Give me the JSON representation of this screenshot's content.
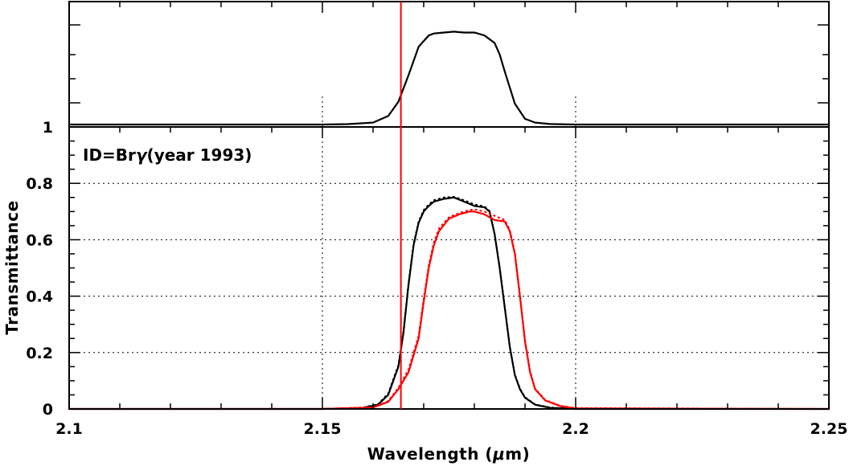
{
  "colors": {
    "black_curve": "#000000",
    "red_curve": "#ff0000",
    "marker_line": "#ff0000",
    "grid": "#000000",
    "background": "#ffffff"
  },
  "chart_data": [
    {
      "id": "top-panel",
      "type": "line",
      "title": "",
      "xlabel": "",
      "ylabel": "",
      "xlim": [
        2.1,
        2.25
      ],
      "yticks_labeled": [
        1
      ],
      "annotations": [],
      "series": [
        {
          "color": "#000000",
          "style": "solid",
          "x": [
            2.1,
            2.15,
            2.155,
            2.16,
            2.163,
            2.165,
            2.167,
            2.169,
            2.171,
            2.172,
            2.174,
            2.176,
            2.177,
            2.178,
            2.18,
            2.182,
            2.184,
            2.185,
            2.186,
            2.188,
            2.19,
            2.192,
            2.195,
            2.2,
            2.25
          ],
          "y": [
            0.0,
            0.0,
            0.004,
            0.02,
            0.09,
            0.24,
            0.52,
            0.82,
            0.94,
            0.96,
            0.97,
            0.98,
            0.975,
            0.97,
            0.97,
            0.94,
            0.86,
            0.74,
            0.56,
            0.22,
            0.06,
            0.02,
            0.005,
            0.0,
            0.0
          ]
        }
      ]
    },
    {
      "id": "bottom-panel",
      "type": "line",
      "title": "",
      "xlabel": "Wavelength (",
      "xlabel_symbol": "μ",
      "xlabel_suffix": "m)",
      "ylabel": "Transmittance",
      "xlim": [
        2.1,
        2.25
      ],
      "ylim": [
        0,
        1
      ],
      "xticks": [
        2.1,
        2.15,
        2.2,
        2.25
      ],
      "xtick_labels": [
        "2.1",
        "2.15",
        "2.2",
        "2.25"
      ],
      "yticks": [
        0,
        0.2,
        0.4,
        0.6,
        0.8,
        1
      ],
      "ytick_labels": [
        "0",
        "0.2",
        "0.4",
        "0.6",
        "0.8",
        "1"
      ],
      "grid": true,
      "grid_style": "dotted",
      "annotations": [
        {
          "prefix": "ID=Br",
          "symbol": "γ",
          "suffix": "(year 1993)"
        }
      ],
      "vertical_marker": {
        "x": 2.1655,
        "color": "#ff0000"
      },
      "series": [
        {
          "color": "#000000",
          "style": "solid",
          "x": [
            2.1,
            2.15,
            2.158,
            2.161,
            2.163,
            2.165,
            2.166,
            2.167,
            2.168,
            2.169,
            2.17,
            2.171,
            2.172,
            2.174,
            2.176,
            2.178,
            2.18,
            2.182,
            2.183,
            2.184,
            2.185,
            2.186,
            2.187,
            2.188,
            2.189,
            2.19,
            2.192,
            2.195,
            2.2,
            2.25
          ],
          "y": [
            0.0,
            0.0,
            0.004,
            0.015,
            0.05,
            0.15,
            0.27,
            0.44,
            0.58,
            0.66,
            0.7,
            0.72,
            0.735,
            0.745,
            0.75,
            0.735,
            0.72,
            0.715,
            0.7,
            0.62,
            0.5,
            0.36,
            0.22,
            0.12,
            0.07,
            0.04,
            0.015,
            0.004,
            0.0,
            0.0
          ]
        },
        {
          "color": "#000000",
          "style": "dotted",
          "x": [
            2.1,
            2.15,
            2.158,
            2.161,
            2.163,
            2.165,
            2.166,
            2.167,
            2.168,
            2.169,
            2.17,
            2.171,
            2.172,
            2.174,
            2.176,
            2.178,
            2.18,
            2.182,
            2.183,
            2.184,
            2.185,
            2.186,
            2.187,
            2.188,
            2.189,
            2.19,
            2.192,
            2.195,
            2.2,
            2.25
          ],
          "y": [
            0.0,
            0.0,
            0.005,
            0.017,
            0.055,
            0.155,
            0.275,
            0.445,
            0.585,
            0.665,
            0.705,
            0.725,
            0.74,
            0.75,
            0.752,
            0.74,
            0.725,
            0.718,
            0.702,
            0.622,
            0.502,
            0.362,
            0.222,
            0.122,
            0.072,
            0.042,
            0.016,
            0.005,
            0.0,
            0.0
          ]
        },
        {
          "color": "#ff0000",
          "style": "solid",
          "x": [
            2.1,
            2.15,
            2.16,
            2.163,
            2.165,
            2.167,
            2.169,
            2.17,
            2.171,
            2.172,
            2.173,
            2.175,
            2.177,
            2.179,
            2.18,
            2.182,
            2.184,
            2.186,
            2.187,
            2.188,
            2.189,
            2.19,
            2.191,
            2.192,
            2.194,
            2.197,
            2.2,
            2.25
          ],
          "y": [
            0.0,
            0.0,
            0.005,
            0.025,
            0.07,
            0.13,
            0.25,
            0.38,
            0.5,
            0.58,
            0.63,
            0.675,
            0.69,
            0.7,
            0.7,
            0.69,
            0.67,
            0.665,
            0.63,
            0.55,
            0.4,
            0.24,
            0.13,
            0.07,
            0.03,
            0.01,
            0.002,
            0.0
          ]
        },
        {
          "color": "#ff0000",
          "style": "dotted",
          "x": [
            2.1,
            2.15,
            2.16,
            2.163,
            2.165,
            2.167,
            2.169,
            2.17,
            2.171,
            2.172,
            2.173,
            2.175,
            2.177,
            2.179,
            2.18,
            2.182,
            2.184,
            2.186,
            2.187,
            2.188,
            2.189,
            2.19,
            2.191,
            2.192,
            2.194,
            2.197,
            2.2,
            2.25
          ],
          "y": [
            0.0,
            0.0,
            0.006,
            0.028,
            0.075,
            0.14,
            0.26,
            0.39,
            0.51,
            0.59,
            0.64,
            0.68,
            0.695,
            0.705,
            0.708,
            0.7,
            0.685,
            0.67,
            0.635,
            0.555,
            0.405,
            0.245,
            0.135,
            0.072,
            0.032,
            0.011,
            0.003,
            0.0
          ]
        }
      ]
    }
  ]
}
